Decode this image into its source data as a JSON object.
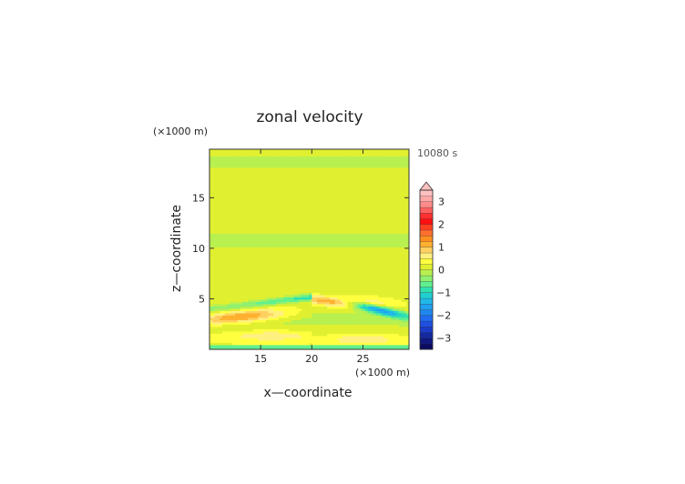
{
  "chart_data": {
    "type": "heatmap",
    "title": "zonal velocity",
    "xlabel": "x—coordinate",
    "ylabel": "z—coordinate",
    "x_unit": "(×1000 m)",
    "y_unit": "(×1000 m)",
    "time_label": "10080 s",
    "x_range": [
      10,
      29.5
    ],
    "y_range": [
      0,
      19.8
    ],
    "x_ticks": [
      15,
      20,
      25
    ],
    "y_ticks": [
      5,
      10,
      15
    ],
    "colorbar": {
      "levels": [
        -3.5,
        -3.25,
        -3,
        -2.75,
        -2.5,
        -2.25,
        -2,
        -1.75,
        -1.5,
        -1.25,
        -1,
        -0.75,
        -0.5,
        -0.25,
        0,
        0.25,
        0.5,
        0.75,
        1,
        1.25,
        1.5,
        1.75,
        2,
        2.25,
        2.5,
        2.75,
        3,
        3.25,
        3.5
      ],
      "tick_labels": [
        3,
        2,
        1,
        0,
        -1,
        -2,
        -3
      ],
      "extend": "max"
    },
    "description_free_field": {
      "background_value": 0.1,
      "bands": [
        {
          "x_from": 10,
          "x_to": 20,
          "z_center": 4.3,
          "value": -1.0
        },
        {
          "x_from": 20,
          "x_to": 29.5,
          "z_center": 3.0,
          "value": -1.7
        },
        {
          "x_from": 10,
          "x_to": 18,
          "z_center": 3.2,
          "value": 1.2
        },
        {
          "x_from": 20,
          "x_to": 29.5,
          "z_center": 4.8,
          "value": 1.2
        },
        {
          "x_from": 10,
          "x_to": 29.5,
          "z_center": 0.1,
          "value": -0.8
        }
      ]
    }
  },
  "colors": {
    "scale": [
      "#0a0a60",
      "#101880",
      "#1428a0",
      "#1a3cc8",
      "#1e50e0",
      "#1f6cf0",
      "#2088f0",
      "#20a0f0",
      "#20b8e8",
      "#20d0d0",
      "#30e0b0",
      "#60f090",
      "#90f070",
      "#b8f050",
      "#e0f030",
      "#ffff40",
      "#fff080",
      "#ffd060",
      "#ffb030",
      "#ff9020",
      "#ff7030",
      "#ff4020",
      "#ff1010",
      "#ff3030",
      "#ff6060",
      "#ff8a8a",
      "#ffa8a8",
      "#ffc0c0"
    ],
    "axis": "#333333"
  }
}
